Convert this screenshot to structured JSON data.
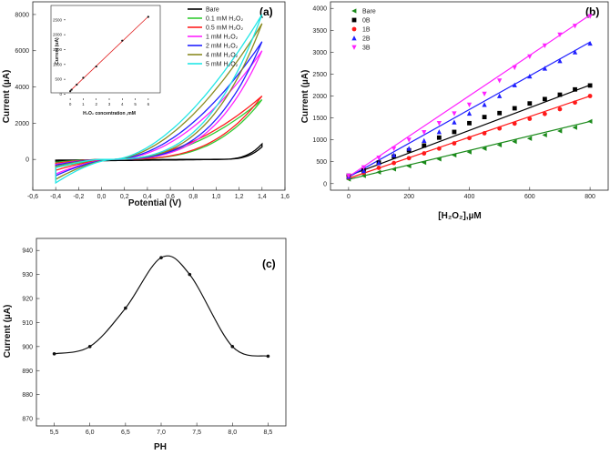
{
  "chart_data": [
    {
      "type": "line",
      "panel": "(a)",
      "xlabel": "Potential (V)",
      "ylabel": "Current (µA)",
      "xlim": [
        -0.6,
        1.6
      ],
      "ylim": [
        -1700,
        8700
      ],
      "xticks": [
        "-0,6",
        "-0,4",
        "-0,2",
        "0,0",
        "0,2",
        "0,4",
        "0,6",
        "0,8",
        "1,0",
        "1,2",
        "1,4",
        "1,6"
      ],
      "xtick_values": [
        -0.6,
        -0.4,
        -0.2,
        0,
        0.2,
        0.4,
        0.6,
        0.8,
        1.0,
        1.2,
        1.4,
        1.6
      ],
      "yticks": [
        "0",
        "2000",
        "4000",
        "6000",
        "8000"
      ],
      "ytick_values": [
        0,
        2000,
        4000,
        6000,
        8000
      ],
      "series": [
        {
          "name": "Bare",
          "color": "#000000",
          "peak": 750,
          "start_low": -100
        },
        {
          "name": "0.1 mM H₂O₂",
          "color": "#33cc33",
          "peak": 3300,
          "start_low": -450
        },
        {
          "name": "0.5 mM H₂O₂",
          "color": "#ff2020",
          "peak": 3500,
          "start_low": -600
        },
        {
          "name": "1 mM H₂O₂",
          "color": "#ff22ff",
          "peak": 6000,
          "start_low": -800
        },
        {
          "name": "2 mM H₂O₂",
          "color": "#2020ff",
          "peak": 6500,
          "start_low": -900
        },
        {
          "name": "4 mM H₂O₂",
          "color": "#8b8b22",
          "peak": 7500,
          "start_low": -1100
        },
        {
          "name": "5 mM H₂O₂",
          "color": "#22e6e6",
          "peak": 8000,
          "start_low": -1300
        }
      ],
      "inset": {
        "xlabel": "H₂O₂ concentration ,mM",
        "ylabel": "Current (uA)",
        "xlim": [
          -0.5,
          6.5
        ],
        "ylim": [
          -200,
          2800
        ],
        "xticks": [
          "0",
          "1",
          "2",
          "3",
          "4",
          "5",
          "6"
        ],
        "xtick_values": [
          0,
          1,
          2,
          3,
          4,
          5,
          6
        ],
        "yticks": [
          "0",
          "500",
          "1000",
          "1500",
          "2000",
          "2500"
        ],
        "ytick_values": [
          0,
          500,
          1000,
          1500,
          2000,
          2500
        ],
        "x": [
          0,
          0.1,
          0.5,
          1,
          2,
          4,
          6
        ],
        "y": [
          100,
          150,
          320,
          550,
          930,
          1800,
          2600
        ]
      }
    },
    {
      "type": "scatter",
      "panel": "(b)",
      "xlabel": "[H₂O₂],µM",
      "ylabel": "Current (µA)",
      "xlim": [
        -60,
        860
      ],
      "ylim": [
        -150,
        4150
      ],
      "xticks": [
        "0",
        "200",
        "400",
        "600",
        "800"
      ],
      "xtick_values": [
        0,
        200,
        400,
        600,
        800
      ],
      "yticks": [
        "0",
        "500",
        "1000",
        "1500",
        "2000",
        "2500",
        "3000",
        "3500",
        "4000"
      ],
      "ytick_values": [
        0,
        500,
        1000,
        1500,
        2000,
        2500,
        3000,
        3500,
        4000
      ],
      "x": [
        0,
        50,
        100,
        150,
        200,
        250,
        300,
        350,
        400,
        450,
        500,
        550,
        600,
        650,
        700,
        750,
        800
      ],
      "series": [
        {
          "name": "Bare",
          "color": "#1a8a1a",
          "marker": "tri-left",
          "values": [
            100,
            180,
            260,
            330,
            400,
            480,
            560,
            650,
            720,
            800,
            880,
            960,
            1030,
            1110,
            1200,
            1280,
            1420
          ]
        },
        {
          "name": "0B",
          "color": "#000000",
          "marker": "square",
          "values": [
            180,
            300,
            480,
            620,
            760,
            870,
            1050,
            1180,
            1380,
            1520,
            1610,
            1720,
            1830,
            1930,
            2030,
            2150,
            2240
          ]
        },
        {
          "name": "1B",
          "color": "#ff1a1a",
          "marker": "circle",
          "values": [
            140,
            250,
            360,
            470,
            580,
            690,
            800,
            920,
            1040,
            1150,
            1260,
            1370,
            1480,
            1590,
            1700,
            1850,
            2000
          ]
        },
        {
          "name": "2B",
          "color": "#2020ff",
          "marker": "tri-up",
          "values": [
            160,
            290,
            470,
            650,
            800,
            980,
            1180,
            1400,
            1600,
            1800,
            2000,
            2250,
            2450,
            2630,
            2800,
            3000,
            3200
          ]
        },
        {
          "name": "3B",
          "color": "#ff22ff",
          "marker": "tri-down",
          "values": [
            180,
            370,
            590,
            800,
            1000,
            1170,
            1380,
            1600,
            1800,
            2050,
            2350,
            2650,
            2900,
            3150,
            3400,
            3600,
            3820
          ]
        }
      ],
      "fits": [
        {
          "color": "#1a8a1a",
          "y0": 95,
          "y1": 1420
        },
        {
          "color": "#000000",
          "y0": 180,
          "y1": 2250
        },
        {
          "color": "#ff1a1a",
          "y0": 120,
          "y1": 2000
        },
        {
          "color": "#2020ff",
          "y0": 150,
          "y1": 3230
        },
        {
          "color": "#ff22ff",
          "y0": 160,
          "y1": 3850
        }
      ]
    },
    {
      "type": "line",
      "panel": "(c)",
      "xlabel": "PH",
      "ylabel": "Current (µA)",
      "xlim": [
        5.25,
        8.75
      ],
      "ylim": [
        867,
        945
      ],
      "xticks": [
        "5,5",
        "6,0",
        "6,5",
        "7,0",
        "7,5",
        "8,0",
        "8,5"
      ],
      "xtick_values": [
        5.5,
        6.0,
        6.5,
        7.0,
        7.5,
        8.0,
        8.5
      ],
      "yticks": [
        "870",
        "880",
        "890",
        "900",
        "910",
        "920",
        "930",
        "940"
      ],
      "ytick_values": [
        870,
        880,
        890,
        900,
        910,
        920,
        930,
        940
      ],
      "x": [
        5.5,
        6.0,
        6.5,
        7.0,
        7.4,
        8.0,
        8.5
      ],
      "y": [
        897,
        900,
        916,
        937,
        930,
        900,
        896
      ]
    }
  ]
}
